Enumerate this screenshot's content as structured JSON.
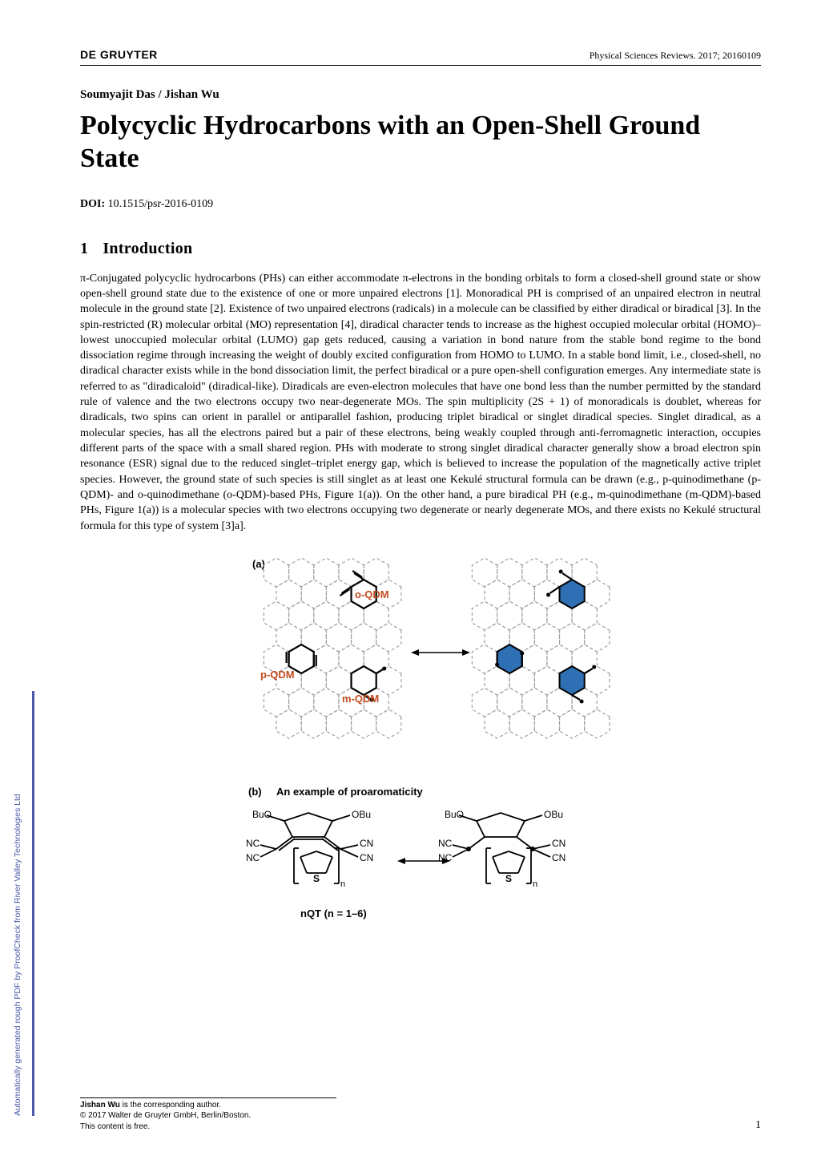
{
  "header": {
    "publisher": "DE GRUYTER",
    "journal": "Physical Sciences Reviews. 2017; 20160109"
  },
  "authors": "Soumyajit Das / Jishan Wu",
  "title": "Polycyclic Hydrocarbons with an Open-Shell Ground State",
  "doi": {
    "label": "DOI:",
    "value": "10.1515/psr-2016-0109"
  },
  "section": {
    "num": "1",
    "title": "Introduction"
  },
  "paragraph": "π-Conjugated polycyclic hydrocarbons (PHs) can either accommodate π-electrons in the bonding orbitals to form a closed-shell ground state or show open-shell ground state due to the existence of one or more unpaired electrons [1]. Monoradical PH is comprised of an unpaired electron in neutral molecule in the ground state [2]. Existence of two unpaired electrons (radicals) in a molecule can be classified by either diradical or biradical [3]. In the spin-restricted (R) molecular orbital (MO) representation [4], diradical character tends to increase as the highest occupied molecular orbital (HOMO)– lowest unoccupied molecular orbital (LUMO) gap gets reduced, causing a variation in bond nature from the stable bond regime to the bond dissociation regime through increasing the weight of doubly excited configuration from HOMO to LUMO. In a stable bond limit, i.e., closed-shell, no diradical character exists while in the bond dissociation limit, the perfect biradical or a pure open-shell configuration emerges. Any intermediate state is referred to as \"diradicaloid\" (diradical-like). Diradicals are even-electron molecules that have one bond less than the number permitted by the standard rule of valence and the two electrons occupy two near-degenerate MOs. The spin multiplicity (2S + 1) of monoradicals is doublet, whereas for diradicals, two spins can orient in parallel or antiparallel fashion, producing triplet biradical or singlet diradical species. Singlet diradical, as a molecular species, has all the electrons paired but a pair of these electrons, being weakly coupled through anti-ferromagnetic interaction, occupies different parts of the space with a small shared region. PHs with moderate to strong singlet diradical character generally show a broad electron spin resonance (ESR) signal due to the reduced singlet–triplet energy gap, which is believed to increase the population of the magnetically active triplet species. However, the ground state of such species is still singlet as at least one Kekulé structural formula can be drawn (e.g., p-quinodimethane (p-QDM)- and o-quinodimethane (o-QDM)-based PHs, Figure 1(a)). On the other hand, a pure biradical PH (e.g., m-quinodimethane (m-QDM)-based PHs, Figure 1(a)) is a molecular species with two electrons occupying two degenerate or nearly degenerate MOs, and there exists no Kekulé structural formula for this type of system [3]a].",
  "figure": {
    "panel_a": {
      "label": "(a)",
      "labels": {
        "oQDM": "o-QDM",
        "pQDM": "p-QDM",
        "mQDM": "m-QDM"
      },
      "colors": {
        "dashed_hex": "#9aa0a6",
        "solid_hex": "#000000",
        "aromatic_fill": "#2f6fb3",
        "label_oQDM": "#c24a1f",
        "label_pQDM": "#c24a1f",
        "label_mQDM": "#c24a1f",
        "radical_dot": "#000000",
        "arrow": "#000000"
      },
      "hex_radius": 18,
      "dash_pattern": "4,3",
      "line_width_dashed": 1.2,
      "line_width_solid": 2.2,
      "arrow_length": 60
    },
    "panel_b": {
      "label": "(b)",
      "caption": "An example of proaromaticity",
      "left": {
        "type": "quinoid-thiophene-oligomer",
        "substR": [
          "BuO",
          "OBu",
          "NC",
          "CN",
          "NC",
          "CN"
        ],
        "repeat_label": "n",
        "outer_label_below": "nQT   (n = 1–6)",
        "S_label": "S"
      },
      "right": {
        "type": "aromatic-thiophene-oligomer-diradical",
        "substR": [
          "BuO",
          "OBu",
          "NC",
          "CN",
          "NC",
          "CN"
        ],
        "repeat_label": "n",
        "S_label": "S"
      },
      "colors": {
        "bonds": "#000000",
        "labels": "#000000",
        "arrow": "#000000"
      },
      "line_width": 1.8,
      "arrow_length": 55
    },
    "background": "#ffffff"
  },
  "footer": {
    "corresp_name": "Jishan Wu",
    "corresp_rest": " is the corresponding author.",
    "copyright": "© 2017 Walter de Gruyter GmbH, Berlin/Boston.",
    "license": "This content is free."
  },
  "side_text": "Automatically generated rough PDF by ProofCheck from River Valley Technologies Ltd",
  "side_color": "#4a5aa8",
  "page_number": "1"
}
